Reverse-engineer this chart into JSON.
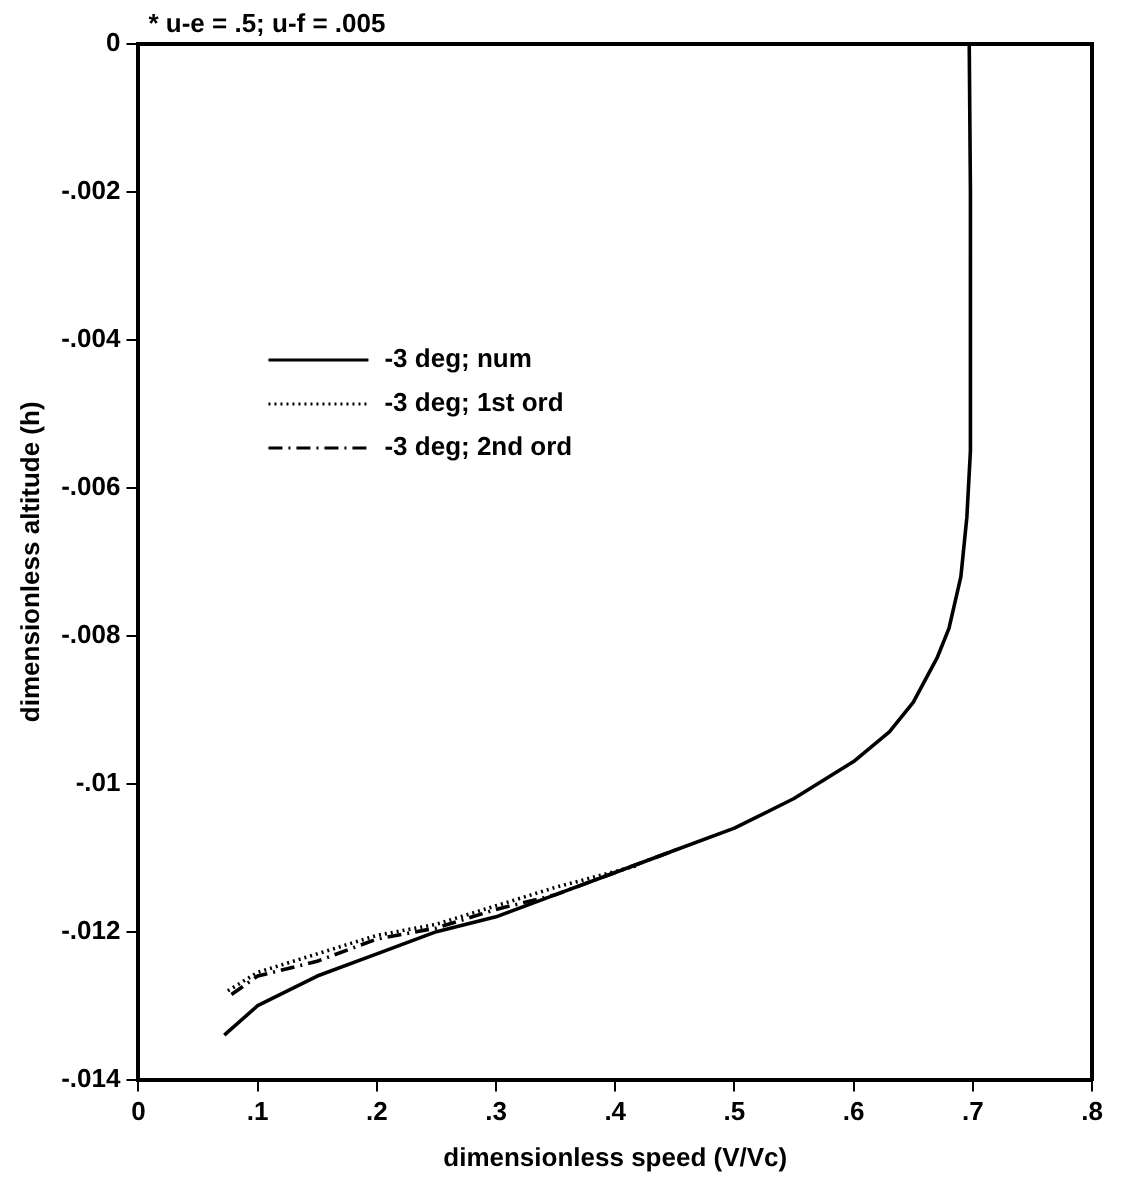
{
  "chart_data": {
    "type": "line",
    "xlabel": "dimensionless speed (V/Vc)",
    "ylabel": "dimensionless altitude (h)",
    "annotations": [
      "* u-e = .5; u-f = .005"
    ],
    "xlim": [
      0,
      0.8
    ],
    "xticks": [
      0,
      {
        "value": 0.1,
        "label": ".1"
      },
      {
        "value": 0.2,
        "label": ".2"
      },
      {
        "value": 0.3,
        "label": ".3"
      },
      {
        "value": 0.4,
        "label": ".4"
      },
      {
        "value": 0.5,
        "label": ".5"
      },
      {
        "value": 0.6,
        "label": ".6"
      },
      {
        "value": 0.7,
        "label": ".7"
      },
      {
        "value": 0.8,
        "label": ".8"
      }
    ],
    "ylim": [
      -0.014,
      0
    ],
    "yticks": [
      {
        "value": -0.014,
        "label": "-.014"
      },
      {
        "value": -0.012,
        "label": "-.012"
      },
      {
        "value": -0.01,
        "label": "-.01"
      },
      {
        "value": -0.008,
        "label": "-.008"
      },
      {
        "value": -0.006,
        "label": "-.006"
      },
      {
        "value": -0.004,
        "label": "-.004"
      },
      {
        "value": -0.002,
        "label": "-.002"
      },
      0
    ],
    "grid": false,
    "legend": "top left",
    "marker": "none",
    "series": [
      {
        "name": "-3 deg; num",
        "color": "#000000",
        "line_style": "solid",
        "x": [
          0.072,
          0.1,
          0.15,
          0.2,
          0.25,
          0.3,
          0.35,
          0.4,
          0.45,
          0.5,
          0.55,
          0.6,
          0.63,
          0.65,
          0.67,
          0.68,
          0.69,
          0.695,
          0.698,
          0.698,
          0.697
        ],
        "values": [
          -0.0134,
          -0.013,
          -0.0126,
          -0.0123,
          -0.012,
          -0.0118,
          -0.0115,
          -0.0112,
          -0.0109,
          -0.0106,
          -0.0102,
          -0.0097,
          -0.0093,
          -0.0089,
          -0.0083,
          -0.0079,
          -0.0072,
          -0.0064,
          -0.0055,
          -0.002,
          0
        ]
      },
      {
        "name": "-3 deg; 1st ord",
        "color": "#000000",
        "line_style": "dotted",
        "x": [
          0.075,
          0.1,
          0.15,
          0.2,
          0.25,
          0.3,
          0.35,
          0.42
        ],
        "values": [
          -0.0128,
          -0.01255,
          -0.0123,
          -0.01205,
          -0.0119,
          -0.01165,
          -0.0114,
          -0.0111
        ]
      },
      {
        "name": "-3 deg; 2nd ord",
        "color": "#000000",
        "line_style": "dashed",
        "x": [
          0.078,
          0.1,
          0.15,
          0.2,
          0.25,
          0.3,
          0.35,
          0.4,
          0.45
        ],
        "values": [
          -0.01285,
          -0.0126,
          -0.0124,
          -0.0121,
          -0.01195,
          -0.0117,
          -0.0115,
          -0.0112,
          -0.0109
        ]
      }
    ]
  }
}
